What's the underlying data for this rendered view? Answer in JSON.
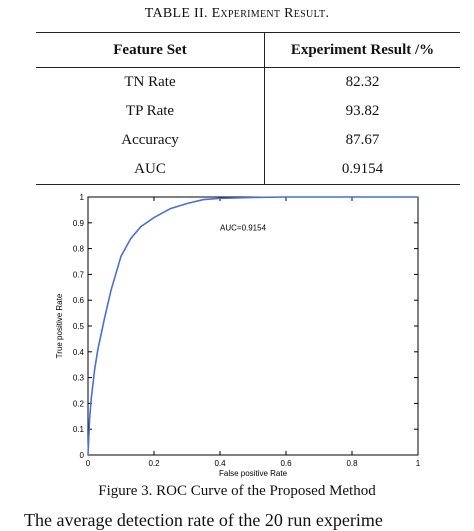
{
  "table": {
    "caption_prefix": "TABLE II.",
    "caption_title": "Experiment Result.",
    "headers": [
      "Feature Set",
      "Experiment Result /%"
    ],
    "rows": [
      [
        "TN Rate",
        "82.32"
      ],
      [
        "TP Rate",
        "93.82"
      ],
      [
        "Accuracy",
        "87.67"
      ],
      [
        "AUC",
        "0.9154"
      ]
    ]
  },
  "chart_data": {
    "type": "line",
    "xlabel": "False positive Rate",
    "ylabel": "True positive Rate",
    "xlim": [
      0,
      1
    ],
    "ylim": [
      0,
      1
    ],
    "x_ticks": [
      "0",
      "0.2",
      "0.4",
      "0.6",
      "0.8",
      "1"
    ],
    "y_ticks": [
      "0",
      "0.1",
      "0.2",
      "0.3",
      "0.4",
      "0.5",
      "0.6",
      "0.7",
      "0.8",
      "0.9",
      "1"
    ],
    "annotation": "AUC=0.9154",
    "annotation_pos": [
      0.4,
      0.87
    ],
    "line_color": "#4a6fd6",
    "series": [
      {
        "x": [
          0,
          0.005,
          0.01,
          0.02,
          0.03,
          0.05,
          0.07,
          0.1,
          0.13,
          0.16,
          0.2,
          0.25,
          0.3,
          0.35,
          0.4,
          0.5,
          0.6,
          0.7,
          0.8,
          0.9,
          1.0
        ],
        "y": [
          0,
          0.14,
          0.22,
          0.33,
          0.41,
          0.53,
          0.64,
          0.77,
          0.84,
          0.885,
          0.92,
          0.955,
          0.975,
          0.99,
          0.995,
          0.998,
          1.0,
          1.0,
          1.0,
          1.0,
          1.0
        ]
      }
    ]
  },
  "figure_caption": "Figure 3. ROC Curve of the Proposed Method",
  "body_text": "The average detection rate of the 20 run experime"
}
